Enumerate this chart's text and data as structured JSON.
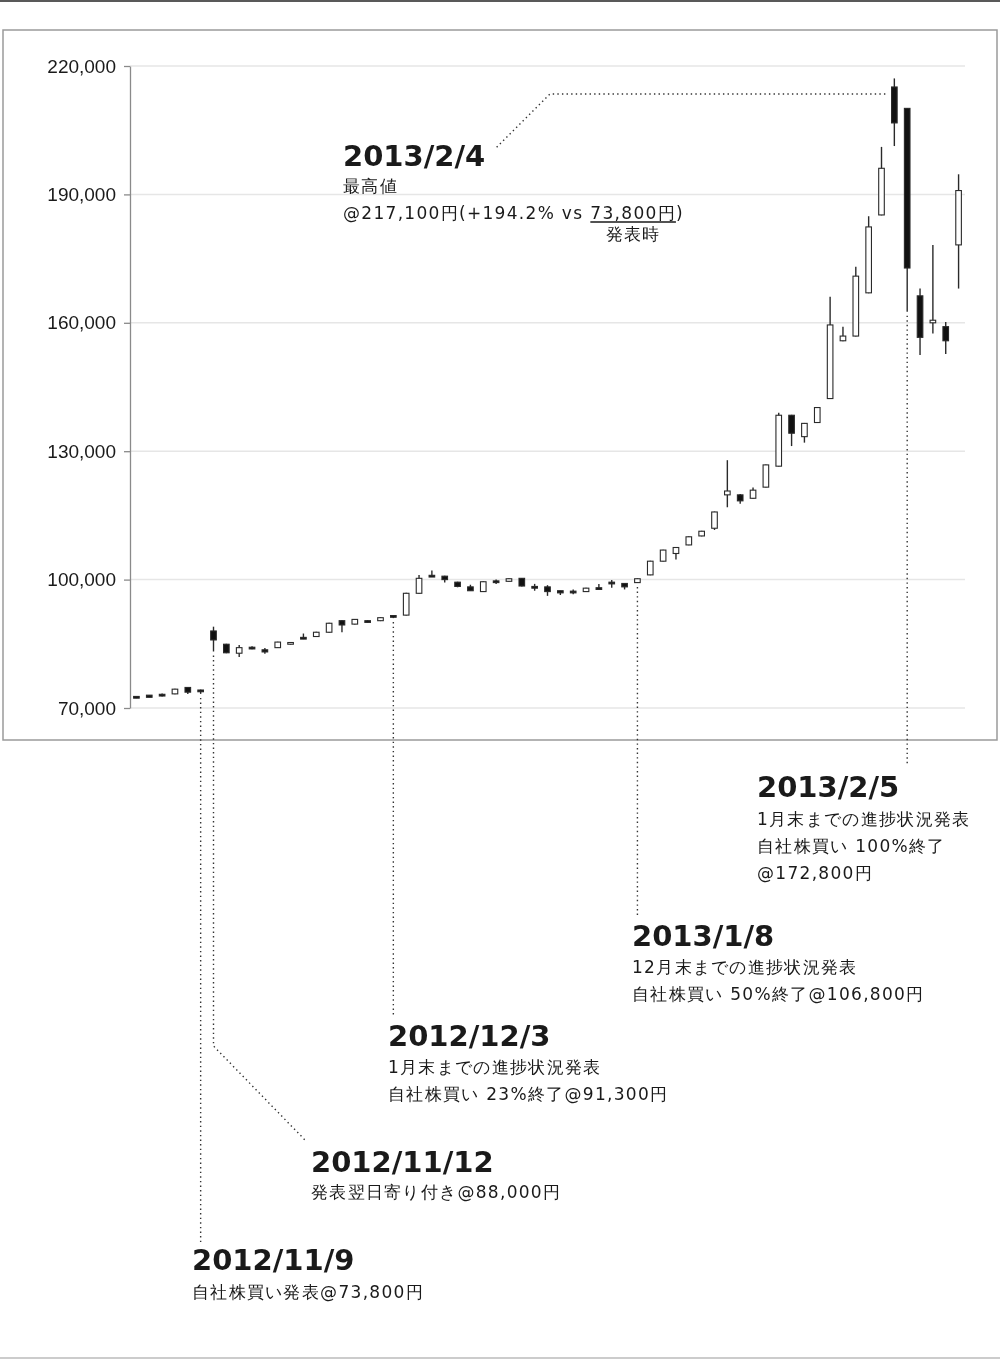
{
  "chart_data": {
    "type": "candlestick",
    "categories": [
      null,
      null,
      null,
      null,
      null,
      null,
      null,
      null,
      null,
      null,
      null,
      null,
      null,
      null,
      null,
      null,
      null,
      null,
      null,
      null,
      null,
      null,
      null,
      null,
      null,
      null,
      null,
      null,
      null,
      null,
      null,
      null,
      null,
      null,
      null,
      null,
      null,
      null,
      null,
      null,
      null,
      null,
      null,
      null,
      null,
      null,
      null,
      null,
      null,
      null,
      null,
      null,
      null,
      null,
      null,
      null,
      null,
      null,
      null,
      null,
      null,
      null,
      null,
      null,
      null
    ],
    "ohlc": [
      [
        72700,
        72700,
        72300,
        72300
      ],
      [
        73000,
        73000,
        72500,
        72500
      ],
      [
        73200,
        73400,
        72700,
        72800
      ],
      [
        73300,
        74500,
        73200,
        74400
      ],
      [
        74800,
        74900,
        73300,
        73700
      ],
      [
        74200,
        74300,
        73300,
        73800
      ],
      [
        88000,
        89000,
        83200,
        85900
      ],
      [
        84900,
        85000,
        82800,
        82900
      ],
      [
        82800,
        84700,
        81900,
        84100
      ],
      [
        84200,
        84400,
        83700,
        83800
      ],
      [
        83600,
        84000,
        82700,
        83100
      ],
      [
        84100,
        85500,
        84000,
        85400
      ],
      [
        84900,
        85400,
        84800,
        85300
      ],
      [
        86500,
        87400,
        86100,
        86100
      ],
      [
        86700,
        87800,
        86600,
        87700
      ],
      [
        87700,
        89900,
        87600,
        89800
      ],
      [
        90400,
        90500,
        87700,
        89400
      ],
      [
        89600,
        90800,
        89500,
        90700
      ],
      [
        90400,
        90500,
        89900,
        90000
      ],
      [
        90400,
        91200,
        90300,
        91100
      ],
      [
        91600,
        91700,
        91000,
        91200
      ],
      [
        91700,
        96900,
        91600,
        96800
      ],
      [
        96800,
        101100,
        96700,
        100300
      ],
      [
        101000,
        102100,
        100600,
        100600
      ],
      [
        100800,
        100900,
        99300,
        100000
      ],
      [
        99400,
        99500,
        98200,
        98400
      ],
      [
        98300,
        98800,
        97400,
        97400
      ],
      [
        97200,
        99600,
        97100,
        99500
      ],
      [
        99700,
        100000,
        99000,
        99300
      ],
      [
        99600,
        100300,
        99500,
        100200
      ],
      [
        100300,
        100400,
        98400,
        98500
      ],
      [
        98400,
        99000,
        97400,
        98000
      ],
      [
        98300,
        98700,
        96200,
        97200
      ],
      [
        97400,
        97400,
        96400,
        96900
      ],
      [
        97300,
        97700,
        96600,
        96900
      ],
      [
        97200,
        98100,
        97100,
        98000
      ],
      [
        98100,
        99000,
        97700,
        97700
      ],
      [
        99400,
        99900,
        98100,
        99000
      ],
      [
        99100,
        99200,
        97700,
        98300
      ],
      [
        99300,
        100300,
        99200,
        100200
      ],
      [
        101100,
        104400,
        101000,
        104300
      ],
      [
        104300,
        107000,
        104200,
        106900
      ],
      [
        106100,
        107600,
        104700,
        107500
      ],
      [
        108100,
        110100,
        108000,
        110000
      ],
      [
        110200,
        111400,
        110100,
        111300
      ],
      [
        112000,
        115900,
        111600,
        115800
      ],
      [
        119800,
        127900,
        116900,
        120700
      ],
      [
        119800,
        120000,
        117700,
        118400
      ],
      [
        119000,
        121500,
        118900,
        120900
      ],
      [
        121600,
        126900,
        121500,
        126800
      ],
      [
        126500,
        139000,
        126400,
        138400
      ],
      [
        138400,
        138500,
        131200,
        134200
      ],
      [
        133400,
        136600,
        132000,
        136500
      ],
      [
        136700,
        140300,
        136600,
        140200
      ],
      [
        142300,
        166100,
        142200,
        159500
      ],
      [
        155800,
        159100,
        155700,
        156900
      ],
      [
        156900,
        173100,
        156800,
        170900
      ],
      [
        167000,
        184900,
        166900,
        182400
      ],
      [
        185200,
        201100,
        185100,
        196100
      ],
      [
        215100,
        217100,
        201300,
        206700
      ],
      [
        210100,
        210200,
        162600,
        172800
      ],
      [
        166300,
        168000,
        152500,
        156600
      ],
      [
        160000,
        178200,
        157500,
        160600
      ],
      [
        159100,
        160200,
        152700,
        155800
      ],
      [
        178200,
        194700,
        168000,
        190900
      ]
    ],
    "ylim": [
      70000,
      220000
    ],
    "yticks": [
      {
        "value": 70000,
        "label": "70,000"
      },
      {
        "value": 100000,
        "label": "100,000"
      },
      {
        "value": 130000,
        "label": "130,000"
      },
      {
        "value": 160000,
        "label": "160,000"
      },
      {
        "value": 190000,
        "label": "190,000"
      },
      {
        "value": 220000,
        "label": "220,000"
      }
    ],
    "grid": "y",
    "annotations": [
      "2013/2/4",
      "最高値",
      "@217,100円(+194.2% vs",
      "73,800円)",
      "発表時",
      "2013/2/5",
      "1月末までの進捗状況発表",
      "自社株買い 100%終了",
      "@172,800円",
      "2013/1/8",
      "12月末までの進捗状況発表",
      "自社株買い 50%終了@106,800円",
      "2012/12/3",
      "1月末までの進捗状況発表",
      "自社株買い 23%終了@91,300円",
      "2012/11/12",
      "発表翌日寄り付き@88,000円",
      "2012/11/9",
      "自社株買い発表@73,800円"
    ]
  }
}
